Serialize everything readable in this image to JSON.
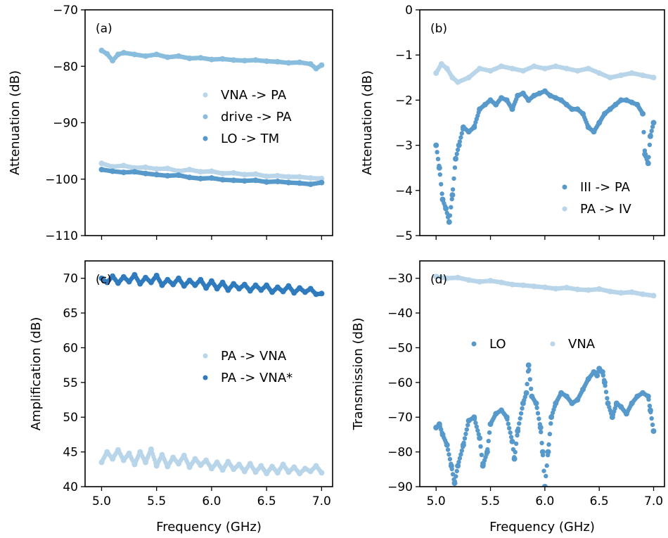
{
  "figure": {
    "background": "#ffffff"
  },
  "chart_data": [
    {
      "id": "a",
      "type": "scatter",
      "panel_label": "(a)",
      "xlabel": "",
      "ylabel": "Attenuation (dB)",
      "xlim": [
        4.85,
        7.1
      ],
      "ylim": [
        -110,
        -70
      ],
      "xticks": [
        5.0,
        5.5,
        6.0,
        6.5,
        7.0
      ],
      "xtick_labels": [
        "",
        "",
        "",
        "",
        ""
      ],
      "yticks": [
        -70,
        -80,
        -90,
        -100,
        -110
      ],
      "ytick_labels": [
        "−70",
        "−80",
        "−90",
        "−100",
        "−110"
      ],
      "legend_position": "center-right",
      "series": [
        {
          "name": "VNA -> PA",
          "color": "#b8d5ea",
          "x": [
            5.0,
            5.1,
            5.2,
            5.3,
            5.4,
            5.5,
            5.6,
            5.7,
            5.8,
            5.9,
            6.0,
            6.1,
            6.2,
            6.3,
            6.4,
            6.5,
            6.6,
            6.7,
            6.8,
            6.9,
            7.0
          ],
          "y": [
            -97.2,
            -97.8,
            -97.6,
            -98.0,
            -97.9,
            -98.2,
            -98.1,
            -98.6,
            -98.3,
            -98.7,
            -98.6,
            -99.0,
            -98.9,
            -99.2,
            -99.1,
            -99.5,
            -99.4,
            -99.6,
            -99.6,
            -99.8,
            -99.9
          ]
        },
        {
          "name": "drive -> PA",
          "color": "#89bddd",
          "x": [
            5.0,
            5.05,
            5.1,
            5.15,
            5.2,
            5.3,
            5.4,
            5.5,
            5.6,
            5.7,
            5.8,
            5.9,
            6.0,
            6.1,
            6.2,
            6.3,
            6.4,
            6.5,
            6.6,
            6.7,
            6.8,
            6.9,
            6.95,
            7.0
          ],
          "y": [
            -77.2,
            -77.8,
            -79.0,
            -77.9,
            -77.6,
            -77.9,
            -78.2,
            -77.9,
            -78.4,
            -78.2,
            -78.6,
            -78.5,
            -78.8,
            -78.7,
            -78.9,
            -79.0,
            -78.9,
            -79.1,
            -79.2,
            -79.4,
            -79.3,
            -79.6,
            -80.4,
            -79.8
          ]
        },
        {
          "name": "LO -> TM",
          "color": "#5799cb",
          "x": [
            5.0,
            5.1,
            5.2,
            5.3,
            5.4,
            5.5,
            5.6,
            5.7,
            5.8,
            5.9,
            6.0,
            6.1,
            6.2,
            6.3,
            6.4,
            6.5,
            6.6,
            6.7,
            6.8,
            6.9,
            7.0
          ],
          "y": [
            -98.3,
            -98.6,
            -98.8,
            -98.7,
            -99.0,
            -99.2,
            -99.4,
            -99.3,
            -99.7,
            -99.9,
            -99.8,
            -100.1,
            -100.2,
            -100.3,
            -100.2,
            -100.5,
            -100.4,
            -100.6,
            -100.7,
            -100.9,
            -100.6
          ]
        }
      ]
    },
    {
      "id": "b",
      "type": "scatter",
      "panel_label": "(b)",
      "xlabel": "",
      "ylabel": "Attenuation (dB)",
      "xlim": [
        4.85,
        7.1
      ],
      "ylim": [
        -5,
        0
      ],
      "xticks": [
        5.0,
        5.5,
        6.0,
        6.5,
        7.0
      ],
      "xtick_labels": [
        "",
        "",
        "",
        "",
        ""
      ],
      "yticks": [
        0,
        -1,
        -2,
        -3,
        -4,
        -5
      ],
      "ytick_labels": [
        "0",
        "−1",
        "−2",
        "−3",
        "−4",
        "−5"
      ],
      "legend_position": "bottom-right",
      "series": [
        {
          "name": "III -> PA",
          "color": "#5799cb",
          "x": [
            5.0,
            5.03,
            5.06,
            5.09,
            5.12,
            5.15,
            5.18,
            5.21,
            5.25,
            5.3,
            5.35,
            5.4,
            5.45,
            5.5,
            5.55,
            5.6,
            5.65,
            5.7,
            5.75,
            5.8,
            5.85,
            5.9,
            5.95,
            6.0,
            6.05,
            6.1,
            6.15,
            6.2,
            6.25,
            6.3,
            6.35,
            6.4,
            6.45,
            6.5,
            6.55,
            6.6,
            6.65,
            6.7,
            6.75,
            6.8,
            6.85,
            6.9,
            6.92,
            6.95,
            6.97,
            7.0
          ],
          "y": [
            -3.0,
            -3.5,
            -4.2,
            -4.4,
            -4.7,
            -4.1,
            -3.3,
            -3.0,
            -2.6,
            -2.7,
            -2.6,
            -2.2,
            -2.1,
            -2.0,
            -2.1,
            -1.95,
            -2.0,
            -2.2,
            -1.9,
            -1.85,
            -2.0,
            -1.9,
            -1.85,
            -1.8,
            -1.9,
            -1.95,
            -2.0,
            -2.1,
            -2.2,
            -2.2,
            -2.3,
            -2.6,
            -2.7,
            -2.5,
            -2.3,
            -2.2,
            -2.1,
            -2.0,
            -2.0,
            -2.05,
            -2.1,
            -2.3,
            -3.2,
            -3.4,
            -2.8,
            -2.5
          ]
        },
        {
          "name": "PA -> IV",
          "color": "#b8d5ea",
          "x": [
            5.0,
            5.05,
            5.1,
            5.15,
            5.2,
            5.3,
            5.4,
            5.5,
            5.6,
            5.7,
            5.8,
            5.9,
            6.0,
            6.1,
            6.2,
            6.3,
            6.4,
            6.5,
            6.6,
            6.7,
            6.8,
            6.9,
            7.0
          ],
          "y": [
            -1.4,
            -1.2,
            -1.3,
            -1.5,
            -1.6,
            -1.5,
            -1.3,
            -1.35,
            -1.25,
            -1.3,
            -1.35,
            -1.25,
            -1.3,
            -1.25,
            -1.3,
            -1.35,
            -1.3,
            -1.4,
            -1.5,
            -1.45,
            -1.4,
            -1.45,
            -1.5
          ]
        }
      ]
    },
    {
      "id": "c",
      "type": "scatter",
      "panel_label": "(c)",
      "xlabel": "Frequency (GHz)",
      "ylabel": "Amplification (dB)",
      "xlim": [
        4.85,
        7.1
      ],
      "ylim": [
        40,
        72.5
      ],
      "xticks": [
        5.0,
        5.5,
        6.0,
        6.5,
        7.0
      ],
      "xtick_labels": [
        "5.0",
        "5.5",
        "6.0",
        "6.5",
        "7.0"
      ],
      "yticks": [
        40,
        45,
        50,
        55,
        60,
        65,
        70
      ],
      "ytick_labels": [
        "40",
        "45",
        "50",
        "55",
        "60",
        "65",
        "70"
      ],
      "legend_position": "center-right",
      "series": [
        {
          "name": "PA -> VNA",
          "color": "#b8d5ea",
          "x": [
            5.0,
            5.05,
            5.1,
            5.15,
            5.2,
            5.25,
            5.3,
            5.35,
            5.4,
            5.45,
            5.5,
            5.55,
            5.6,
            5.65,
            5.7,
            5.75,
            5.8,
            5.85,
            5.9,
            5.95,
            6.0,
            6.05,
            6.1,
            6.15,
            6.2,
            6.25,
            6.3,
            6.35,
            6.4,
            6.45,
            6.5,
            6.55,
            6.6,
            6.65,
            6.7,
            6.75,
            6.8,
            6.85,
            6.9,
            6.95,
            7.0
          ],
          "y": [
            43.5,
            45.0,
            44.0,
            45.3,
            43.8,
            44.8,
            43.2,
            45.0,
            43.5,
            45.4,
            43.0,
            44.6,
            42.9,
            44.2,
            43.3,
            44.5,
            42.8,
            44.0,
            43.1,
            43.8,
            42.6,
            43.5,
            42.4,
            43.6,
            42.5,
            43.2,
            42.2,
            43.3,
            42.1,
            43.0,
            41.9,
            42.9,
            42.0,
            43.2,
            42.1,
            42.8,
            41.9,
            42.6,
            42.2,
            43.0,
            42.0
          ]
        },
        {
          "name": "PA -> VNA*",
          "color": "#2f7bbd",
          "x": [
            5.0,
            5.05,
            5.1,
            5.15,
            5.2,
            5.25,
            5.3,
            5.35,
            5.4,
            5.45,
            5.5,
            5.55,
            5.6,
            5.65,
            5.7,
            5.75,
            5.8,
            5.85,
            5.9,
            5.95,
            6.0,
            6.05,
            6.1,
            6.15,
            6.2,
            6.25,
            6.3,
            6.35,
            6.4,
            6.45,
            6.5,
            6.55,
            6.6,
            6.65,
            6.7,
            6.75,
            6.8,
            6.85,
            6.9,
            6.95,
            7.0
          ],
          "y": [
            70.0,
            69.4,
            70.3,
            69.3,
            70.2,
            69.5,
            70.5,
            69.2,
            70.1,
            69.4,
            70.4,
            69.0,
            69.8,
            69.1,
            70.0,
            68.9,
            69.7,
            69.0,
            69.8,
            68.6,
            69.6,
            68.5,
            69.4,
            68.3,
            69.2,
            68.5,
            69.1,
            68.2,
            69.0,
            68.3,
            69.0,
            68.0,
            68.7,
            68.1,
            68.9,
            67.9,
            68.6,
            68.0,
            68.5,
            67.7,
            67.8
          ]
        }
      ]
    },
    {
      "id": "d",
      "type": "scatter",
      "panel_label": "(d)",
      "xlabel": "Frequency (GHz)",
      "ylabel": "Transmission (dB)",
      "xlim": [
        4.85,
        7.1
      ],
      "ylim": [
        -90,
        -25
      ],
      "xticks": [
        5.0,
        5.5,
        6.0,
        6.5,
        7.0
      ],
      "xtick_labels": [
        "5.0",
        "5.5",
        "6.0",
        "6.5",
        "7.0"
      ],
      "yticks": [
        -30,
        -40,
        -50,
        -60,
        -70,
        -80,
        -90
      ],
      "ytick_labels": [
        "−30",
        "−40",
        "−50",
        "−60",
        "−70",
        "−80",
        "−90"
      ],
      "legend_position": "center",
      "series": [
        {
          "name": "LO",
          "color": "#5799cb",
          "x": [
            5.0,
            5.03,
            5.06,
            5.1,
            5.14,
            5.17,
            5.2,
            5.25,
            5.3,
            5.35,
            5.4,
            5.43,
            5.47,
            5.5,
            5.55,
            5.6,
            5.65,
            5.7,
            5.72,
            5.75,
            5.8,
            5.83,
            5.85,
            5.88,
            5.92,
            5.96,
            5.98,
            6.0,
            6.03,
            6.06,
            6.1,
            6.15,
            6.2,
            6.25,
            6.3,
            6.35,
            6.4,
            6.45,
            6.48,
            6.5,
            6.53,
            6.55,
            6.58,
            6.62,
            6.66,
            6.7,
            6.75,
            6.8,
            6.85,
            6.9,
            6.95,
            6.97,
            7.0
          ],
          "y": [
            -73,
            -72,
            -75,
            -78,
            -84,
            -89,
            -84,
            -78,
            -71,
            -70,
            -76,
            -84,
            -80,
            -72,
            -69,
            -68,
            -70,
            -77,
            -82,
            -74,
            -66,
            -63,
            -55,
            -64,
            -66,
            -73,
            -80,
            -90,
            -80,
            -70,
            -66,
            -63,
            -64,
            -66,
            -65,
            -62,
            -59,
            -57,
            -58,
            -56,
            -57,
            -60,
            -66,
            -70,
            -66,
            -67,
            -69,
            -66,
            -64,
            -63,
            -64,
            -68,
            -74
          ]
        },
        {
          "name": "VNA",
          "color": "#b8d5ea",
          "x": [
            5.0,
            5.1,
            5.2,
            5.3,
            5.4,
            5.5,
            5.6,
            5.7,
            5.8,
            5.9,
            6.0,
            6.1,
            6.2,
            6.3,
            6.4,
            6.5,
            6.6,
            6.7,
            6.8,
            6.9,
            7.0
          ],
          "y": [
            -29.5,
            -30.0,
            -29.8,
            -30.5,
            -31.0,
            -30.7,
            -31.2,
            -31.8,
            -32.0,
            -32.3,
            -32.6,
            -33.0,
            -32.7,
            -33.2,
            -33.4,
            -33.1,
            -33.8,
            -34.2,
            -34.0,
            -34.6,
            -35.0
          ]
        }
      ]
    }
  ]
}
